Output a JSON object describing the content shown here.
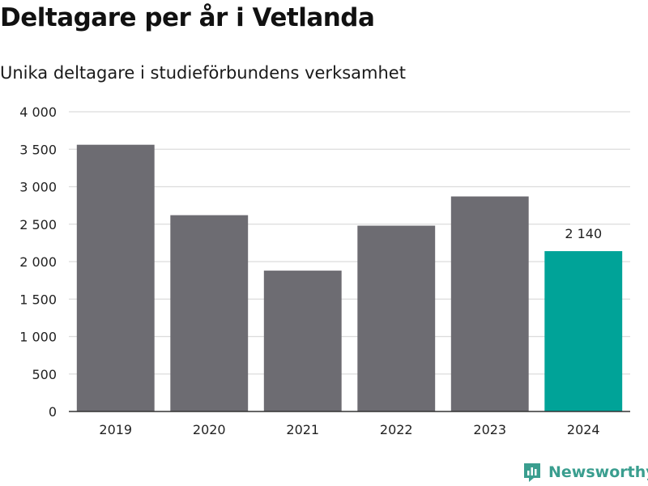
{
  "title": "Deltagare per år i Vetlanda",
  "subtitle": "Unika deltagare i studieförbundens verksamhet",
  "brand": {
    "name": "Newsworthy",
    "icon": "newsworthy-logo-icon"
  },
  "colors": {
    "bar": "#6d6c72",
    "highlight": "#00a398",
    "grid": "#dcdcdc",
    "axis": "#333333"
  },
  "chart_data": {
    "type": "bar",
    "categories": [
      "2019",
      "2020",
      "2021",
      "2022",
      "2023",
      "2024"
    ],
    "values": [
      3560,
      2620,
      1880,
      2480,
      2870,
      2140
    ],
    "highlight_index": 5,
    "data_labels": [
      {
        "index": 5,
        "text": "2 140"
      }
    ],
    "yticks": [
      0,
      500,
      1000,
      1500,
      2000,
      2500,
      3000,
      3500,
      4000
    ],
    "ytick_labels": [
      "0",
      "500",
      "1 000",
      "1 500",
      "2 000",
      "2 500",
      "3 000",
      "3 500",
      "4 000"
    ],
    "ylim": [
      0,
      4000
    ],
    "grid": true,
    "title": "Deltagare per år i Vetlanda",
    "subtitle": "Unika deltagare i studieförbundens verksamhet",
    "xlabel": "",
    "ylabel": ""
  }
}
